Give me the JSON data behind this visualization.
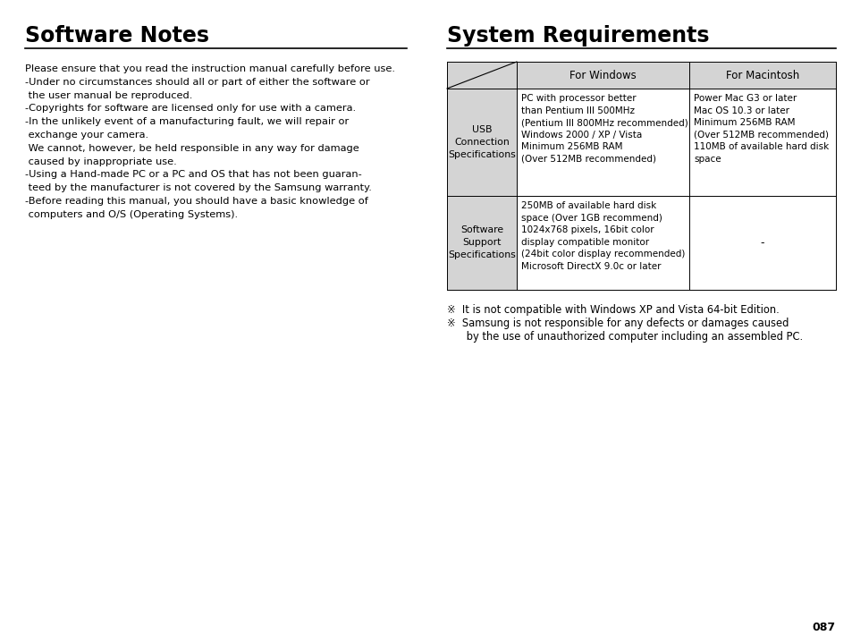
{
  "bg_color": "#ffffff",
  "left_title": "Software Notes",
  "right_title": "System Requirements",
  "left_body": [
    "Please ensure that you read the instruction manual carefully before use.",
    "-Under no circumstances should all or part of either the software or",
    " the user manual be reproduced.",
    "-Copyrights for software are licensed only for use with a camera.",
    "-In the unlikely event of a manufacturing fault, we will repair or",
    " exchange your camera.",
    " We cannot, however, be held responsible in any way for damage",
    " caused by inappropriate use.",
    "-Using a Hand-made PC or a PC and OS that has not been guaran-",
    " teed by the manufacturer is not covered by the Samsung warranty.",
    "-Before reading this manual, you should have a basic knowledge of",
    " computers and O/S (Operating Systems)."
  ],
  "table_header_bg": "#d4d4d4",
  "table_col2_label": "For Windows",
  "table_col3_label": "For Macintosh",
  "table_row1_label": "USB\nConnection\nSpecifications",
  "table_row1_col2": "PC with processor better\nthan Pentium III 500MHz\n(Pentium III 800MHz recommended)\nWindows 2000 / XP / Vista\nMinimum 256MB RAM\n(Over 512MB recommended)",
  "table_row1_col3": "Power Mac G3 or later\nMac OS 10.3 or later\nMinimum 256MB RAM\n(Over 512MB recommended)\n110MB of available hard disk\nspace",
  "table_row2_label": "Software\nSupport\nSpecifications",
  "table_row2_col2": "250MB of available hard disk\nspace (Over 1GB recommend)\n1024x768 pixels, 16bit color\ndisplay compatible monitor\n(24bit color display recommended)\nMicrosoft DirectX 9.0c or later",
  "table_row2_col3": "-",
  "footnote1": "※  It is not compatible with Windows XP and Vista 64-bit Edition.",
  "footnote2": "※  Samsung is not responsible for any defects or damages caused",
  "footnote3": "      by the use of unauthorized computer including an assembled PC.",
  "page_number": "087",
  "divider_color": "#000000",
  "table_border_color": "#000000",
  "text_color": "#000000"
}
